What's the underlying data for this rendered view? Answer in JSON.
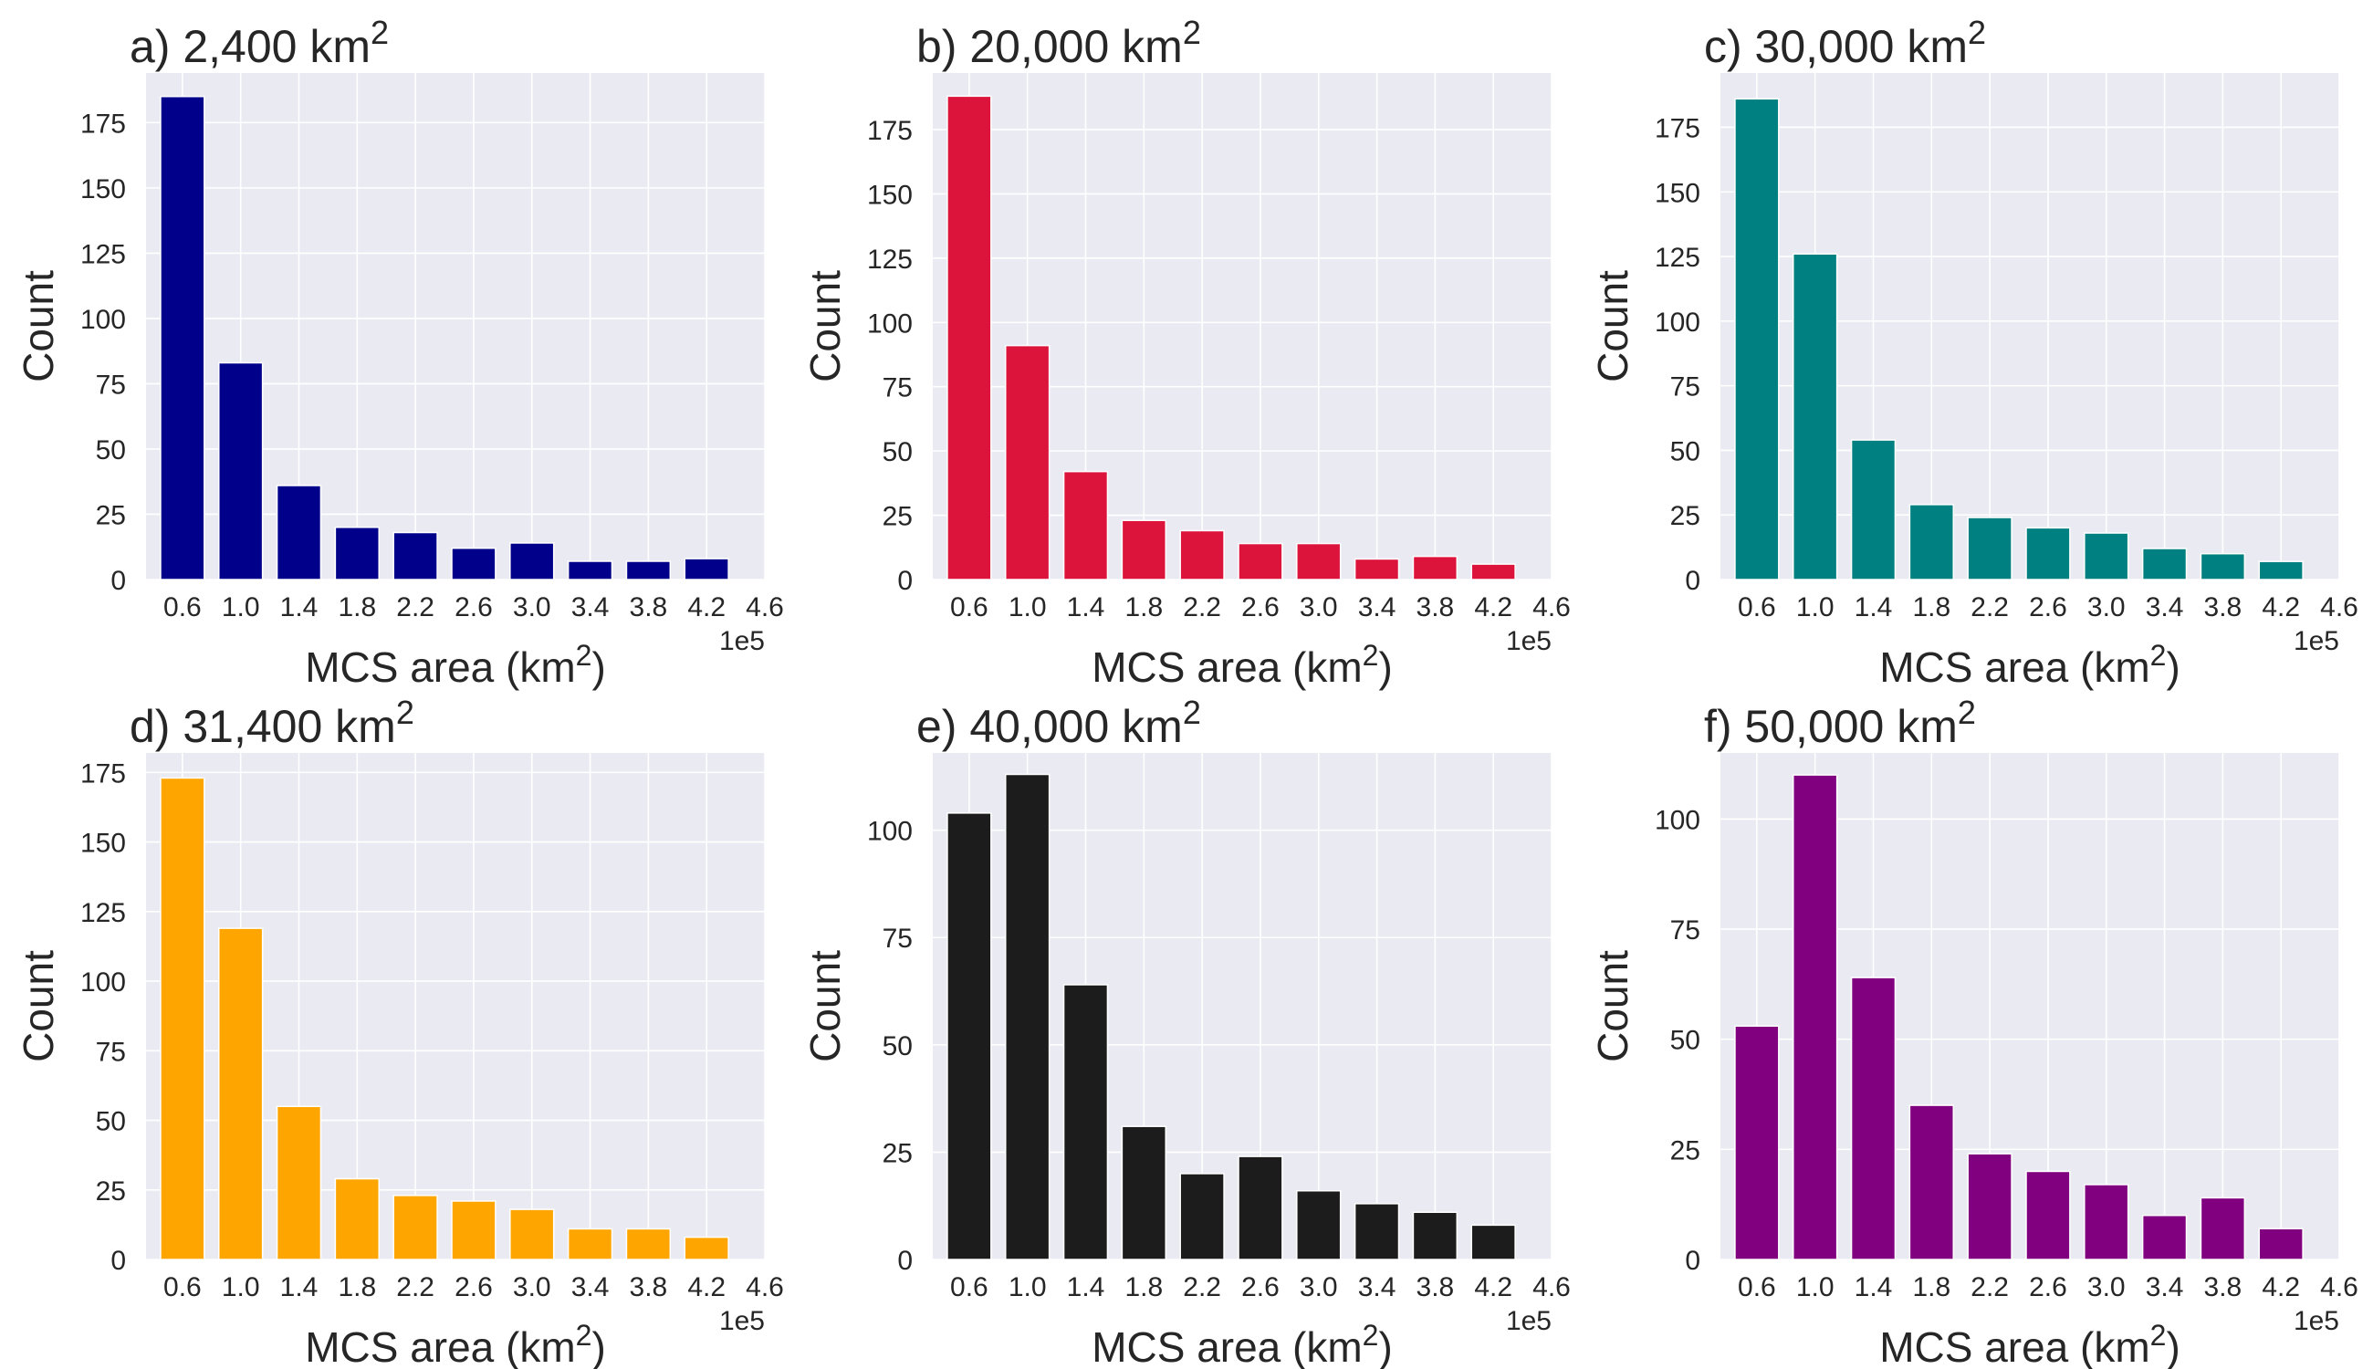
{
  "figure": {
    "panels": [
      {
        "title": "a) 2,400 km",
        "title_sup": "2",
        "ylabel": "Count",
        "xlabel": "MCS area (km",
        "xlabel_sup": "2",
        "xlabel_end": ")",
        "offset_label": "1e5",
        "y_ticks": [
          "0",
          "25",
          "50",
          "75",
          "100",
          "125",
          "150",
          "175"
        ],
        "x_ticks": [
          "0.6",
          "1.0",
          "1.4",
          "1.8",
          "2.2",
          "2.6",
          "3.0",
          "3.4",
          "3.8",
          "4.2",
          "4.6"
        ]
      },
      {
        "title": "b) 20,000 km",
        "title_sup": "2",
        "ylabel": "Count",
        "xlabel": "MCS area (km",
        "xlabel_sup": "2",
        "xlabel_end": ")",
        "offset_label": "1e5",
        "y_ticks": [
          "0",
          "25",
          "50",
          "75",
          "100",
          "125",
          "150",
          "175"
        ],
        "x_ticks": [
          "0.6",
          "1.0",
          "1.4",
          "1.8",
          "2.2",
          "2.6",
          "3.0",
          "3.4",
          "3.8",
          "4.2",
          "4.6"
        ]
      },
      {
        "title": "c) 30,000 km",
        "title_sup": "2",
        "ylabel": "Count",
        "xlabel": "MCS area (km",
        "xlabel_sup": "2",
        "xlabel_end": ")",
        "offset_label": "1e5",
        "y_ticks": [
          "0",
          "25",
          "50",
          "75",
          "100",
          "125",
          "150",
          "175"
        ],
        "x_ticks": [
          "0.6",
          "1.0",
          "1.4",
          "1.8",
          "2.2",
          "2.6",
          "3.0",
          "3.4",
          "3.8",
          "4.2",
          "4.6"
        ]
      },
      {
        "title": "d) 31,400 km",
        "title_sup": "2",
        "ylabel": "Count",
        "xlabel": "MCS area (km",
        "xlabel_sup": "2",
        "xlabel_end": ")",
        "offset_label": "1e5",
        "y_ticks": [
          "0",
          "25",
          "50",
          "75",
          "100",
          "125",
          "150",
          "175"
        ],
        "x_ticks": [
          "0.6",
          "1.0",
          "1.4",
          "1.8",
          "2.2",
          "2.6",
          "3.0",
          "3.4",
          "3.8",
          "4.2",
          "4.6"
        ]
      },
      {
        "title": "e) 40,000 km",
        "title_sup": "2",
        "ylabel": "Count",
        "xlabel": "MCS area (km",
        "xlabel_sup": "2",
        "xlabel_end": ")",
        "offset_label": "1e5",
        "y_ticks": [
          "0",
          "25",
          "50",
          "75",
          "100"
        ],
        "x_ticks": [
          "0.6",
          "1.0",
          "1.4",
          "1.8",
          "2.2",
          "2.6",
          "3.0",
          "3.4",
          "3.8",
          "4.2",
          "4.6"
        ]
      },
      {
        "title": "f) 50,000 km",
        "title_sup": "2",
        "ylabel": "Count",
        "xlabel": "MCS area (km",
        "xlabel_sup": "2",
        "xlabel_end": ")",
        "offset_label": "1e5",
        "y_ticks": [
          "0",
          "25",
          "50",
          "75",
          "100"
        ],
        "x_ticks": [
          "0.6",
          "1.0",
          "1.4",
          "1.8",
          "2.2",
          "2.6",
          "3.0",
          "3.4",
          "3.8",
          "4.2",
          "4.6"
        ]
      }
    ],
    "background_color": "#eaeaf2",
    "grid_color": "#ffffff"
  },
  "chart_data": [
    {
      "type": "bar",
      "title": "a) 2,400 km²",
      "xlabel": "MCS area (km²)",
      "ylabel": "Count",
      "x_offset": "1e5",
      "categories": [
        "0.6",
        "1.0",
        "1.4",
        "1.8",
        "2.2",
        "2.6",
        "3.0",
        "3.4",
        "3.8",
        "4.2"
      ],
      "x": [
        0.6,
        1.0,
        1.4,
        1.8,
        2.2,
        2.6,
        3.0,
        3.4,
        3.8,
        4.2
      ],
      "values": [
        185,
        83,
        36,
        20,
        18,
        12,
        14,
        7,
        7,
        8
      ],
      "bar_width": 0.3,
      "color": "#00008b",
      "xlim": [
        0.35,
        4.6
      ],
      "ylim": [
        0,
        194
      ],
      "grid": true
    },
    {
      "type": "bar",
      "title": "b) 20,000 km²",
      "xlabel": "MCS area (km²)",
      "ylabel": "Count",
      "x_offset": "1e5",
      "categories": [
        "0.6",
        "1.0",
        "1.4",
        "1.8",
        "2.2",
        "2.6",
        "3.0",
        "3.4",
        "3.8",
        "4.2"
      ],
      "x": [
        0.6,
        1.0,
        1.4,
        1.8,
        2.2,
        2.6,
        3.0,
        3.4,
        3.8,
        4.2
      ],
      "values": [
        188,
        91,
        42,
        23,
        19,
        14,
        14,
        8,
        9,
        6
      ],
      "bar_width": 0.3,
      "color": "#dc143c",
      "xlim": [
        0.35,
        4.6
      ],
      "ylim": [
        0,
        197
      ],
      "grid": true
    },
    {
      "type": "bar",
      "title": "c) 30,000 km²",
      "xlabel": "MCS area (km²)",
      "ylabel": "Count",
      "x_offset": "1e5",
      "categories": [
        "0.6",
        "1.0",
        "1.4",
        "1.8",
        "2.2",
        "2.6",
        "3.0",
        "3.4",
        "3.8",
        "4.2"
      ],
      "x": [
        0.6,
        1.0,
        1.4,
        1.8,
        2.2,
        2.6,
        3.0,
        3.4,
        3.8,
        4.2
      ],
      "values": [
        186,
        126,
        54,
        29,
        24,
        20,
        18,
        12,
        10,
        7
      ],
      "bar_width": 0.3,
      "color": "#008080",
      "xlim": [
        0.35,
        4.6
      ],
      "ylim": [
        0,
        196
      ],
      "grid": true
    },
    {
      "type": "bar",
      "title": "d) 31,400 km²",
      "xlabel": "MCS area (km²)",
      "ylabel": "Count",
      "x_offset": "1e5",
      "categories": [
        "0.6",
        "1.0",
        "1.4",
        "1.8",
        "2.2",
        "2.6",
        "3.0",
        "3.4",
        "3.8",
        "4.2"
      ],
      "x": [
        0.6,
        1.0,
        1.4,
        1.8,
        2.2,
        2.6,
        3.0,
        3.4,
        3.8,
        4.2
      ],
      "values": [
        173,
        119,
        55,
        29,
        23,
        21,
        18,
        11,
        11,
        8
      ],
      "bar_width": 0.3,
      "color": "#ffa500",
      "xlim": [
        0.35,
        4.6
      ],
      "ylim": [
        0,
        182
      ],
      "grid": true
    },
    {
      "type": "bar",
      "title": "e) 40,000 km²",
      "xlabel": "MCS area (km²)",
      "ylabel": "Count",
      "x_offset": "1e5",
      "categories": [
        "0.6",
        "1.0",
        "1.4",
        "1.8",
        "2.2",
        "2.6",
        "3.0",
        "3.4",
        "3.8",
        "4.2"
      ],
      "x": [
        0.6,
        1.0,
        1.4,
        1.8,
        2.2,
        2.6,
        3.0,
        3.4,
        3.8,
        4.2
      ],
      "values": [
        104,
        113,
        64,
        31,
        20,
        24,
        16,
        13,
        11,
        8
      ],
      "bar_width": 0.3,
      "color": "#1c1c1c",
      "xlim": [
        0.35,
        4.6
      ],
      "ylim": [
        0,
        118
      ],
      "grid": true
    },
    {
      "type": "bar",
      "title": "f) 50,000 km²",
      "xlabel": "MCS area (km²)",
      "ylabel": "Count",
      "x_offset": "1e5",
      "categories": [
        "0.6",
        "1.0",
        "1.4",
        "1.8",
        "2.2",
        "2.6",
        "3.0",
        "3.4",
        "3.8",
        "4.2"
      ],
      "x": [
        0.6,
        1.0,
        1.4,
        1.8,
        2.2,
        2.6,
        3.0,
        3.4,
        3.8,
        4.2
      ],
      "values": [
        53,
        110,
        64,
        35,
        24,
        20,
        17,
        10,
        14,
        7
      ],
      "bar_width": 0.3,
      "color": "#800080",
      "xlim": [
        0.35,
        4.6
      ],
      "ylim": [
        0,
        115
      ],
      "grid": true
    }
  ]
}
